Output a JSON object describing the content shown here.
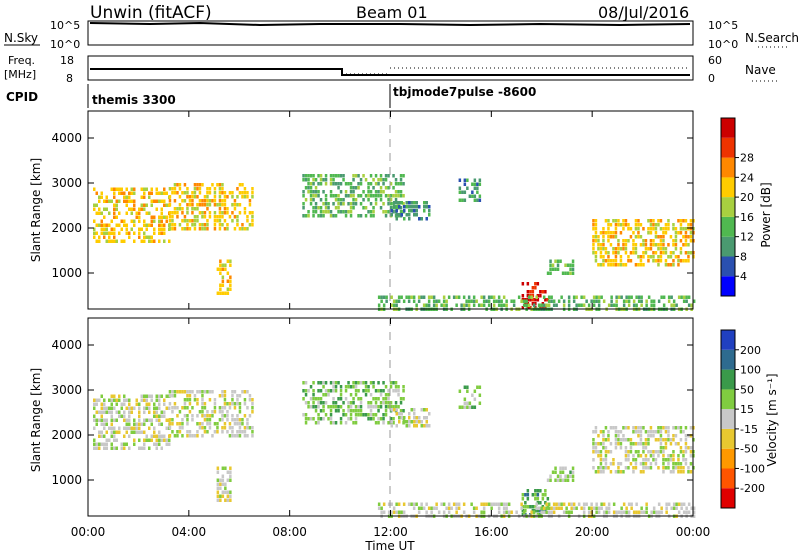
{
  "header": {
    "title": "Unwin (fitACF)",
    "beam": "Beam 01",
    "date": "08/Jul/2016"
  },
  "params": {
    "nsky_label": "N.Sky",
    "nsky_ticks": [
      "10^5",
      "10^0"
    ],
    "nsearch_label": "N.Search",
    "freq_label_line1": "Freq.",
    "freq_label_line2": "[MHz]",
    "freq_ticks": [
      "18",
      "8"
    ],
    "nave_label": "Nave",
    "nave_ticks": [
      "60",
      "0"
    ],
    "cpid_label": "CPID",
    "cpid_segments": [
      {
        "name": "themis 3300",
        "start_hour": 0
      },
      {
        "name": "tbjmode7pulse -8600",
        "start_hour": 12
      }
    ]
  },
  "chart_data": [
    {
      "type": "heatmap",
      "name": "power",
      "ylabel": "Slant Range [km]",
      "ylim": [
        200,
        4600
      ],
      "yticks": [
        "1000",
        "2000",
        "3000",
        "4000"
      ],
      "xlim": [
        0,
        24
      ],
      "colorbar": {
        "label": "Power [dB]",
        "ticks": [
          "4",
          "8",
          "12",
          "16",
          "20",
          "24",
          "28"
        ],
        "colors": [
          "#0000ff",
          "#2a50b0",
          "#4a9a70",
          "#50b850",
          "#a8d040",
          "#ffcc00",
          "#ff8800",
          "#ee3300",
          "#cc0000"
        ]
      },
      "echo_regions": [
        {
          "t0": 0.2,
          "t1": 3.2,
          "r0": 1700,
          "r1": 2900,
          "level": 18
        },
        {
          "t0": 3.2,
          "t1": 6.5,
          "r0": 2000,
          "r1": 3000,
          "level": 16
        },
        {
          "t0": 5.1,
          "t1": 5.6,
          "r0": 500,
          "r1": 1300,
          "level": 16
        },
        {
          "t0": 8.5,
          "t1": 12.5,
          "r0": 2300,
          "r1": 3200,
          "level": 10
        },
        {
          "t0": 12.0,
          "t1": 13.5,
          "r0": 2200,
          "r1": 2600,
          "level": 8
        },
        {
          "t0": 14.7,
          "t1": 15.5,
          "r0": 2600,
          "r1": 3100,
          "level": 8
        },
        {
          "t0": 17.2,
          "t1": 18.2,
          "r0": 200,
          "r1": 800,
          "level": 26
        },
        {
          "t0": 18.2,
          "t1": 19.2,
          "r0": 950,
          "r1": 1300,
          "level": 10
        },
        {
          "t0": 20.0,
          "t1": 24.0,
          "r0": 1200,
          "r1": 2200,
          "level": 18
        },
        {
          "t0": 11.5,
          "t1": 24.0,
          "r0": 200,
          "r1": 500,
          "level": 10
        }
      ]
    },
    {
      "type": "heatmap",
      "name": "velocity",
      "ylabel": "Slant Range [km]",
      "ylim": [
        200,
        4600
      ],
      "yticks": [
        "1000",
        "2000",
        "3000",
        "4000"
      ],
      "xlim": [
        0,
        24
      ],
      "xticks": [
        "00:00",
        "04:00",
        "08:00",
        "12:00",
        "16:00",
        "20:00",
        "00:00"
      ],
      "xlabel": "Time UT",
      "colorbar": {
        "label": "Velocity [m s⁻¹]",
        "ticks": [
          "200",
          "100",
          "50",
          "15",
          "-15",
          "-50",
          "-100",
          "-200"
        ],
        "colors": [
          "#2040c0",
          "#2e6b8f",
          "#3a9a4a",
          "#80cc40",
          "#c8c8c8",
          "#e8c830",
          "#ff9900",
          "#ff5500",
          "#e00000"
        ]
      },
      "echo_regions": [
        {
          "t0": 0.2,
          "t1": 3.2,
          "r0": 1700,
          "r1": 2900,
          "level": 0
        },
        {
          "t0": 3.2,
          "t1": 6.5,
          "r0": 2000,
          "r1": 3000,
          "level": 0
        },
        {
          "t0": 5.1,
          "t1": 5.6,
          "r0": 500,
          "r1": 1300,
          "level": 0
        },
        {
          "t0": 8.5,
          "t1": 12.5,
          "r0": 2300,
          "r1": 3200,
          "level": 20
        },
        {
          "t0": 12.0,
          "t1": 13.5,
          "r0": 2200,
          "r1": 2600,
          "level": 10
        },
        {
          "t0": 14.7,
          "t1": 15.5,
          "r0": 2600,
          "r1": 3100,
          "level": 30
        },
        {
          "t0": 17.2,
          "t1": 18.2,
          "r0": 200,
          "r1": 800,
          "level": 80
        },
        {
          "t0": 18.2,
          "t1": 19.2,
          "r0": 950,
          "r1": 1300,
          "level": 20
        },
        {
          "t0": 20.0,
          "t1": 24.0,
          "r0": 1200,
          "r1": 2200,
          "level": 0
        },
        {
          "t0": 11.5,
          "t1": 24.0,
          "r0": 200,
          "r1": 500,
          "level": -10
        }
      ]
    }
  ]
}
